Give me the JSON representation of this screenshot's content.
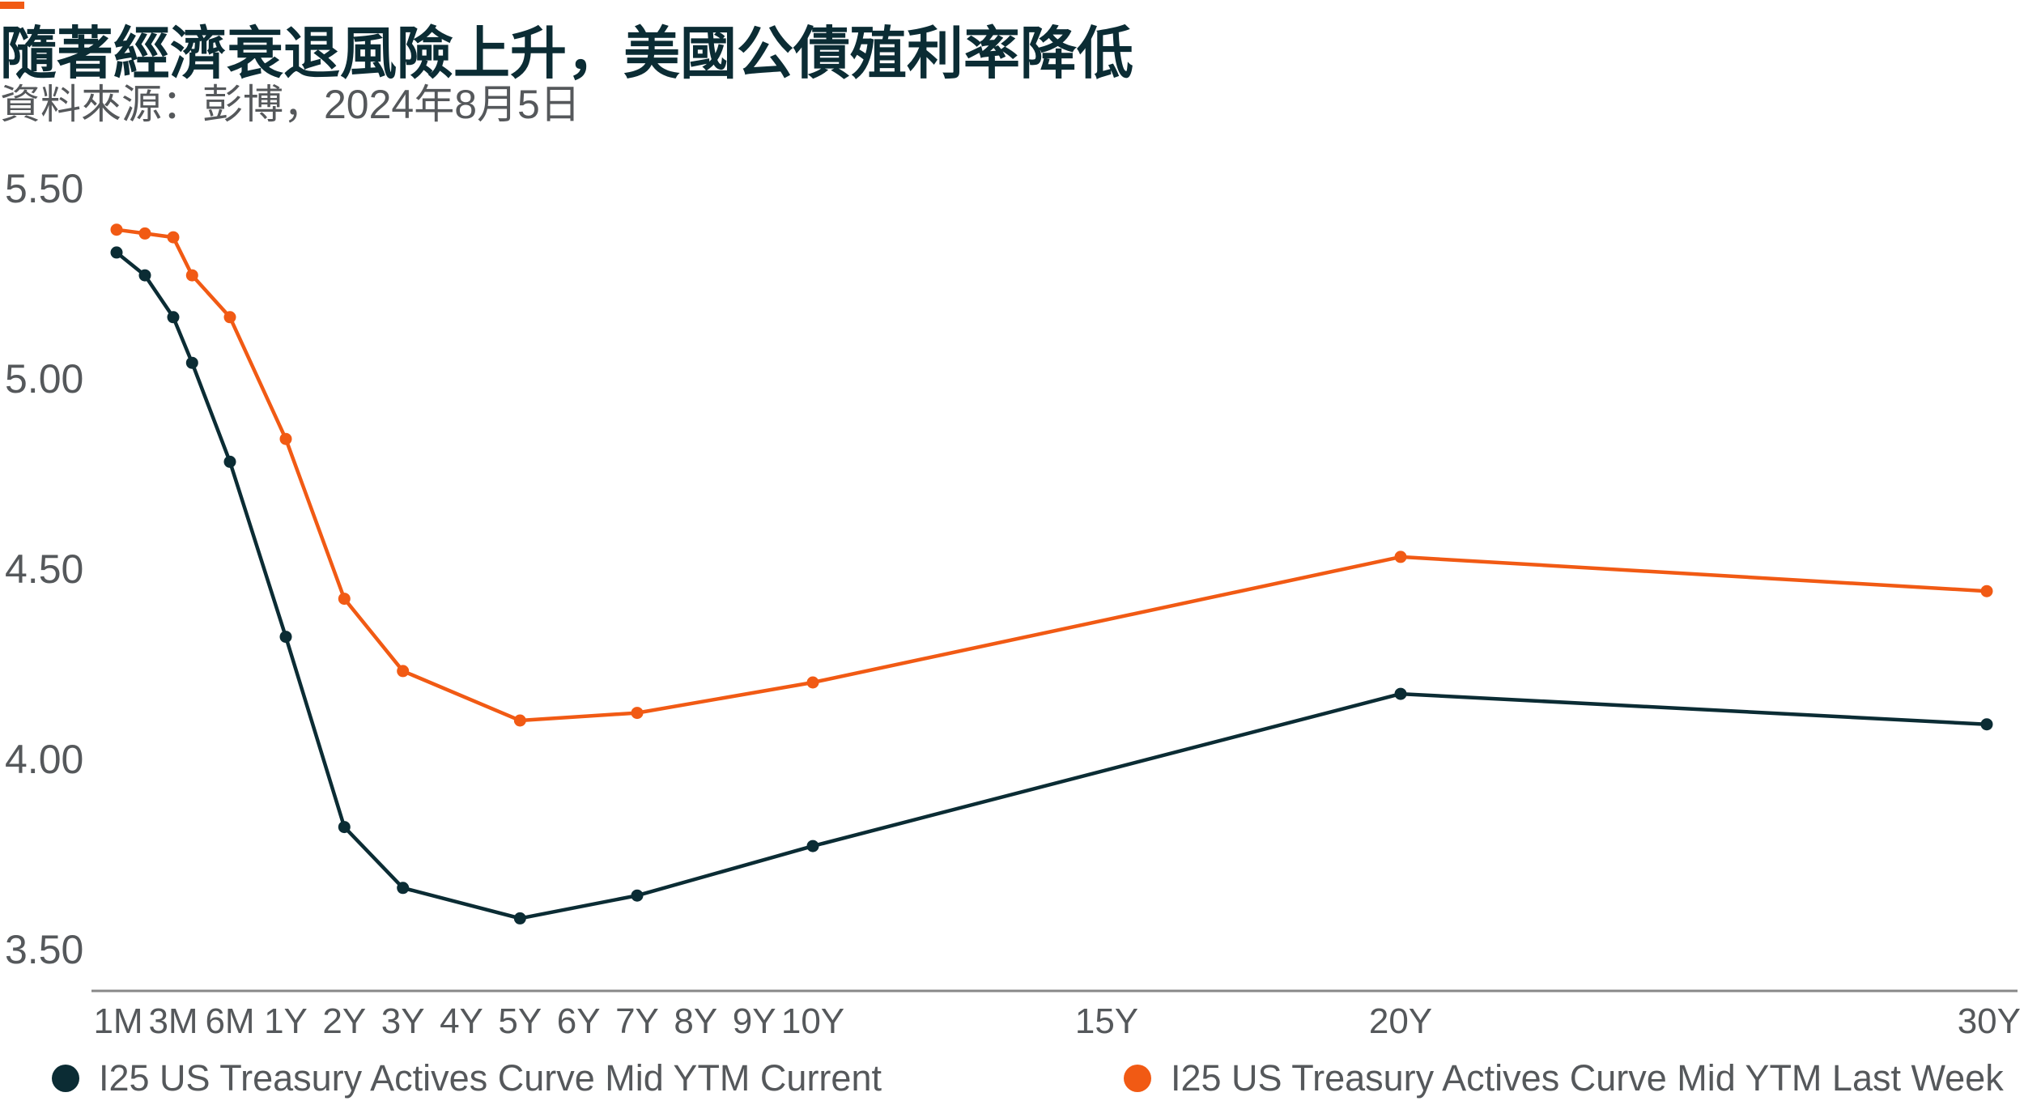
{
  "title": "隨著經濟衰退風險上升，美國公債殖利率降低",
  "subtitle": "資料來源：彭博，2024年8月5日",
  "colors": {
    "current": "#0b2c34",
    "last_week": "#f15a14",
    "accent": "#f15a14",
    "axis": "#888888",
    "text": "#55585b"
  },
  "chart_data": {
    "type": "line",
    "title": "隨著經濟衰退風險上升，美國公債殖利率降低",
    "xlabel": "",
    "ylabel": "",
    "ylim": [
      3.5,
      5.5
    ],
    "y_ticks": [
      "3.50",
      "4.00",
      "4.50",
      "5.00",
      "5.50"
    ],
    "x_ticks": [
      "1M",
      "3M",
      "6M",
      "1Y",
      "2Y",
      "3Y",
      "4Y",
      "5Y",
      "6Y",
      "7Y",
      "8Y",
      "9Y",
      "10Y",
      "15Y",
      "20Y",
      "30Y"
    ],
    "grid": false,
    "legend_position": "bottom",
    "series": [
      {
        "name": "I25 US Treasury Actives Curve Mid YTM Current",
        "color": "#0b2c34",
        "points": [
          {
            "x": "1M",
            "y": 5.33
          },
          {
            "x": "2M",
            "y": 5.27
          },
          {
            "x": "3M",
            "y": 5.16
          },
          {
            "x": "4M",
            "y": 5.04
          },
          {
            "x": "6M",
            "y": 4.78
          },
          {
            "x": "1Y",
            "y": 4.32
          },
          {
            "x": "2Y",
            "y": 3.82
          },
          {
            "x": "3Y",
            "y": 3.66
          },
          {
            "x": "5Y",
            "y": 3.58
          },
          {
            "x": "7Y",
            "y": 3.64
          },
          {
            "x": "10Y",
            "y": 3.77
          },
          {
            "x": "20Y",
            "y": 4.17
          },
          {
            "x": "30Y",
            "y": 4.09
          }
        ]
      },
      {
        "name": "I25 US Treasury Actives Curve Mid YTM Last Week",
        "color": "#f15a14",
        "points": [
          {
            "x": "1M",
            "y": 5.39
          },
          {
            "x": "2M",
            "y": 5.38
          },
          {
            "x": "3M",
            "y": 5.37
          },
          {
            "x": "4M",
            "y": 5.27
          },
          {
            "x": "6M",
            "y": 5.16
          },
          {
            "x": "1Y",
            "y": 4.84
          },
          {
            "x": "2Y",
            "y": 4.42
          },
          {
            "x": "3Y",
            "y": 4.23
          },
          {
            "x": "5Y",
            "y": 4.1
          },
          {
            "x": "7Y",
            "y": 4.12
          },
          {
            "x": "10Y",
            "y": 4.2
          },
          {
            "x": "20Y",
            "y": 4.53
          },
          {
            "x": "30Y",
            "y": 4.44
          }
        ]
      }
    ]
  },
  "legend": {
    "current_label": "I25 US Treasury Actives Curve Mid YTM Current",
    "last_week_label": "I25 US Treasury Actives Curve Mid YTM Last Week"
  }
}
